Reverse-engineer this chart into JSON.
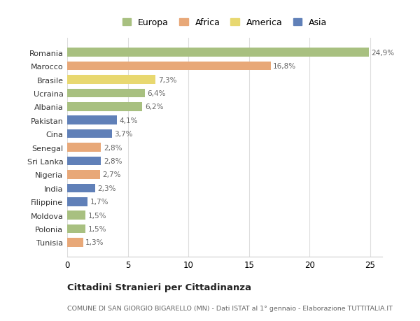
{
  "categories": [
    "Romania",
    "Marocco",
    "Brasile",
    "Ucraina",
    "Albania",
    "Pakistan",
    "Cina",
    "Senegal",
    "Sri Lanka",
    "Nigeria",
    "India",
    "Filippine",
    "Moldova",
    "Polonia",
    "Tunisia"
  ],
  "values": [
    24.9,
    16.8,
    7.3,
    6.4,
    6.2,
    4.1,
    3.7,
    2.8,
    2.8,
    2.7,
    2.3,
    1.7,
    1.5,
    1.5,
    1.3
  ],
  "labels": [
    "24,9%",
    "16,8%",
    "7,3%",
    "6,4%",
    "6,2%",
    "4,1%",
    "3,7%",
    "2,8%",
    "2,8%",
    "2,7%",
    "2,3%",
    "1,7%",
    "1,5%",
    "1,5%",
    "1,3%"
  ],
  "continents": [
    "Europa",
    "Africa",
    "America",
    "Europa",
    "Europa",
    "Asia",
    "Asia",
    "Africa",
    "Asia",
    "Africa",
    "Asia",
    "Asia",
    "Europa",
    "Europa",
    "Africa"
  ],
  "colors": {
    "Europa": "#a8c080",
    "Africa": "#e8a878",
    "America": "#e8d870",
    "Asia": "#6080b8"
  },
  "title": "Cittadini Stranieri per Cittadinanza",
  "subtitle": "COMUNE DI SAN GIORGIO BIGARELLO (MN) - Dati ISTAT al 1° gennaio - Elaborazione TUTTITALIA.IT",
  "xlim": [
    0,
    26
  ],
  "xticks": [
    0,
    5,
    10,
    15,
    20,
    25
  ],
  "background_color": "#ffffff",
  "grid_color": "#dddddd",
  "legend_order": [
    "Europa",
    "Africa",
    "America",
    "Asia"
  ]
}
